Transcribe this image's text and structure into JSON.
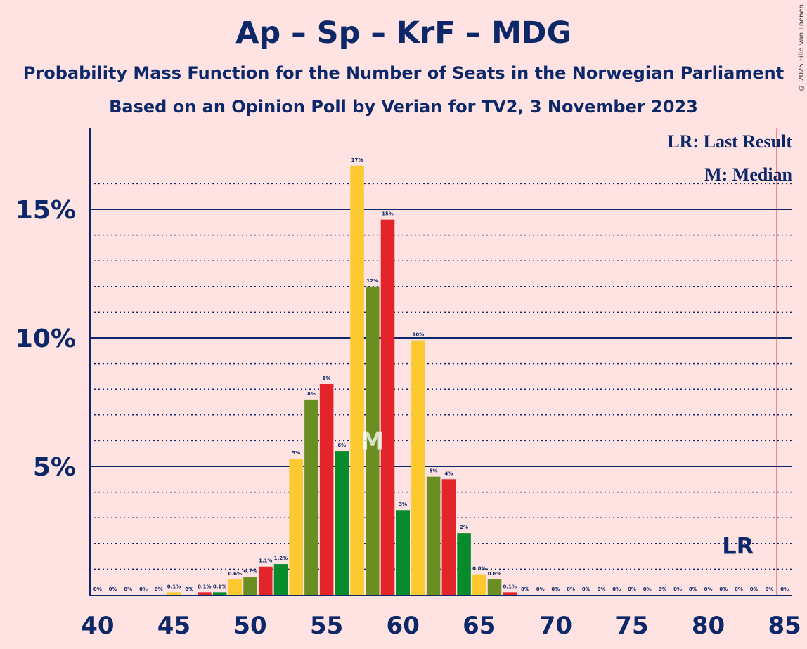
{
  "title": "Ap – Sp – KrF – MDG",
  "subtitle1": "Probability Mass Function for the Number of Seats in the Norwegian Parliament",
  "subtitle2": "Based on an Opinion Poll by Verian for TV2, 3 November 2023",
  "copyright": "© 2025 Filip van Laenen",
  "colors": {
    "background": "#ffe3e3",
    "axis": "#0c2869",
    "last_result_line": "#e3242b",
    "bar_colors": [
      "#078b2c",
      "#fdc931",
      "#6b8e23",
      "#e3242b"
    ]
  },
  "chart_data": {
    "type": "bar",
    "x": [
      40,
      41,
      42,
      43,
      44,
      45,
      46,
      47,
      48,
      49,
      50,
      51,
      52,
      53,
      54,
      55,
      56,
      57,
      58,
      59,
      60,
      61,
      62,
      63,
      64,
      65,
      66,
      67,
      68,
      69,
      70,
      71,
      72,
      73,
      74,
      75,
      76,
      77,
      78,
      79,
      80,
      81,
      82,
      83,
      84,
      85
    ],
    "values": [
      0,
      0,
      0,
      0,
      0,
      0.1,
      0,
      0.1,
      0.1,
      0.6,
      0.7,
      1.1,
      1.2,
      5.3,
      7.6,
      8.2,
      5.6,
      16.7,
      12.0,
      14.6,
      3.3,
      9.9,
      4.6,
      4.5,
      2.4,
      0.8,
      0.6,
      0.1,
      0,
      0,
      0,
      0,
      0,
      0,
      0,
      0,
      0,
      0,
      0,
      0,
      0,
      0,
      0,
      0,
      0,
      0
    ],
    "labels": [
      "0%",
      "0%",
      "0%",
      "0%",
      "0%",
      "0.1%",
      "0%",
      "0.1%",
      "0.1%",
      "0.6%",
      "0.7%",
      "1.1%",
      "1.2%",
      "5%",
      "8%",
      "8%",
      "6%",
      "17%",
      "12%",
      "15%",
      "3%",
      "10%",
      "5%",
      "4%",
      "2%",
      "0.8%",
      "0.6%",
      "0.1%",
      "0%",
      "0%",
      "0%",
      "0%",
      "0%",
      "0%",
      "0%",
      "0%",
      "0%",
      "0%",
      "0%",
      "0%",
      "0%",
      "0%",
      "0%",
      "0%",
      "0%",
      "0%"
    ],
    "x_ticks": [
      40,
      45,
      50,
      55,
      60,
      65,
      70,
      75,
      80,
      85
    ],
    "x_tick_labels": [
      "40",
      "45",
      "50",
      "55",
      "60",
      "65",
      "70",
      "75",
      "80",
      "85"
    ],
    "y_ticks_major": [
      5,
      10,
      15
    ],
    "y_tick_labels": [
      "5%",
      "10%",
      "15%"
    ],
    "ylim": [
      0,
      18
    ],
    "xlim": [
      39.5,
      85.5
    ],
    "median": 58,
    "median_label": "M",
    "last_result": 85,
    "last_result_label": "LR",
    "legend": [
      "LR: Last Result",
      "M: Median"
    ],
    "legend_position": "top-right",
    "grid": true
  }
}
